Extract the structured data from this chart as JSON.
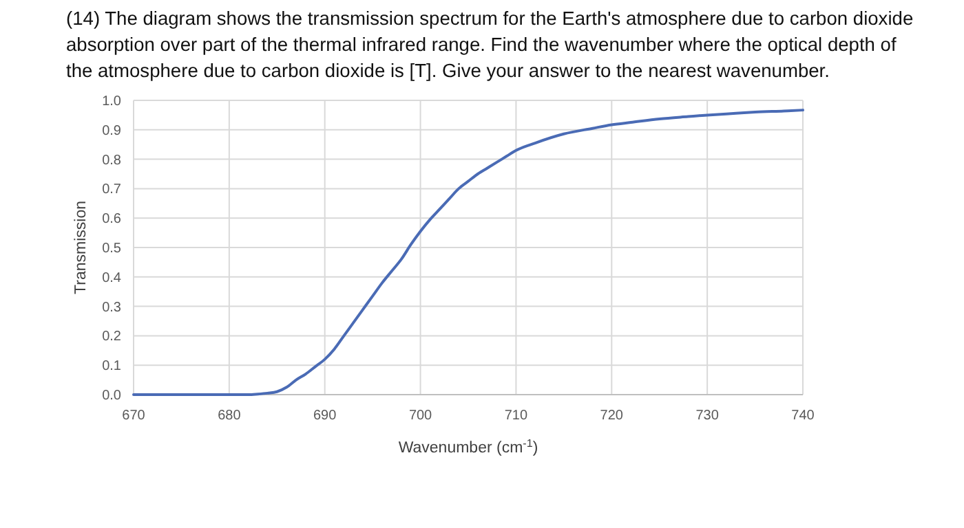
{
  "chart_data": {
    "type": "line",
    "title": "(14) The diagram shows the transmission spectrum for the Earth's atmosphere due to carbon dioxide absorption over part of the thermal infrared range. Find the wavenumber where the optical depth of the atmosphere due to carbon dioxide is [T]. Give your answer to the nearest wavenumber.",
    "xlabel": "Wavenumber (cm$^{-1}$)",
    "ylabel": "Transmission",
    "series": [
      {
        "color": "#4a6bb5",
        "x": [
          670,
          675,
          680,
          682,
          683,
          684,
          685,
          686,
          687,
          688,
          689,
          690,
          691,
          692,
          693,
          694,
          695,
          696,
          697,
          698,
          699,
          700,
          701,
          702,
          703,
          704,
          705,
          706,
          707,
          708,
          709,
          710,
          712,
          715,
          718,
          720,
          722,
          725,
          728,
          730,
          733,
          735,
          738,
          740
        ],
        "values": [
          0,
          0,
          0,
          0,
          0.002,
          0.005,
          0.01,
          0.025,
          0.05,
          0.07,
          0.095,
          0.12,
          0.155,
          0.2,
          0.245,
          0.29,
          0.335,
          0.38,
          0.42,
          0.46,
          0.51,
          0.555,
          0.595,
          0.63,
          0.665,
          0.7,
          0.725,
          0.75,
          0.77,
          0.79,
          0.81,
          0.83,
          0.855,
          0.886,
          0.905,
          0.917,
          0.925,
          0.937,
          0.945,
          0.95,
          0.956,
          0.96,
          0.964,
          0.967
        ]
      }
    ],
    "xlim": [
      670,
      740
    ],
    "xticks": [
      670,
      680,
      690,
      700,
      710,
      720,
      730,
      740
    ],
    "ylim": [
      0,
      1
    ],
    "yticks": [
      {
        "value": 0,
        "label": "0.0"
      },
      {
        "value": 0.1,
        "label": "0.1"
      },
      {
        "value": 0.2,
        "label": "0.2"
      },
      {
        "value": 0.3,
        "label": "0.3"
      },
      {
        "value": 0.4,
        "label": "0.4"
      },
      {
        "value": 0.5,
        "label": "0.5"
      },
      {
        "value": 0.6,
        "label": "0.6"
      },
      {
        "value": 0.7,
        "label": "0.7"
      },
      {
        "value": 0.8,
        "label": "0.8"
      },
      {
        "value": 0.9,
        "label": "0.9"
      },
      {
        "value": 1,
        "label": "1.0"
      }
    ],
    "grid": true,
    "marker": "none",
    "line_style": "solid"
  }
}
